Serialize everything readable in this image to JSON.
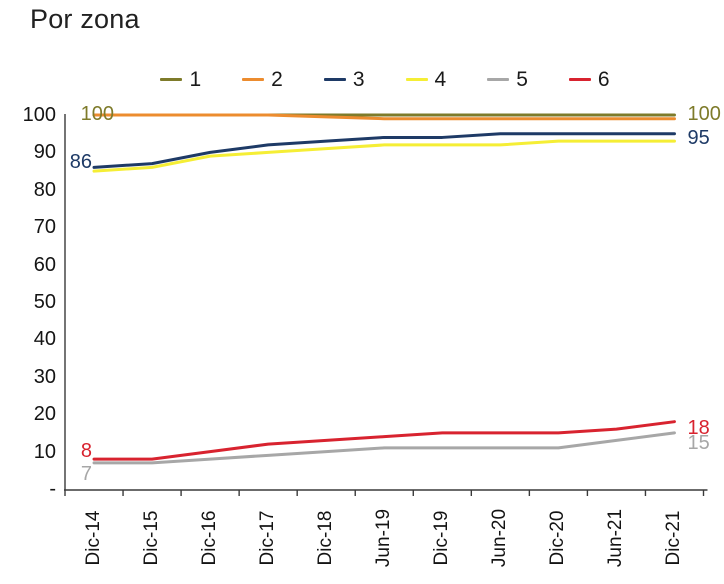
{
  "chart_data": {
    "type": "line",
    "title": "Por zona",
    "categories": [
      "Dic-14",
      "Dic-15",
      "Dic-16",
      "Dic-17",
      "Dic-18",
      "Jun-19",
      "Dic-19",
      "Jun-20",
      "Dic-20",
      "Jun-21",
      "Dic-21"
    ],
    "series": [
      {
        "name": "1",
        "color": "#7E7B2A",
        "values": [
          100,
          100,
          100,
          100,
          100,
          100,
          100,
          100,
          100,
          100,
          100
        ],
        "label_start": "100",
        "label_end": "100"
      },
      {
        "name": "2",
        "color": "#EC8C2F",
        "values": [
          100,
          100,
          100,
          100,
          99.5,
          99,
          99,
          99,
          99,
          99,
          99
        ],
        "label_start": null,
        "label_end": null
      },
      {
        "name": "3",
        "color": "#1E3A66",
        "values": [
          86,
          87,
          90,
          92,
          93,
          94,
          94,
          95,
          95,
          95,
          95
        ],
        "label_start": "86",
        "label_end": "95"
      },
      {
        "name": "4",
        "color": "#F5EE35",
        "values": [
          85,
          86,
          89,
          90,
          91,
          92,
          92,
          92,
          93,
          93,
          93
        ],
        "label_start": null,
        "label_end": null
      },
      {
        "name": "5",
        "color": "#A7A7A7",
        "values": [
          7,
          7,
          8,
          9,
          10,
          11,
          11,
          11,
          11,
          13,
          15
        ],
        "label_start": "7",
        "label_end": "15"
      },
      {
        "name": "6",
        "color": "#D8232F",
        "values": [
          8,
          8,
          10,
          12,
          13,
          14,
          15,
          15,
          15,
          16,
          18
        ],
        "label_start": "8",
        "label_end": "18"
      }
    ],
    "y_tick_labels": [
      "100",
      "90",
      "80",
      "70",
      "60",
      "50",
      "40",
      "30",
      "20",
      "10",
      "-"
    ],
    "ylim": [
      0,
      100
    ],
    "grid": false,
    "legend_position": "top",
    "axis_color": "#3a3a3a"
  }
}
